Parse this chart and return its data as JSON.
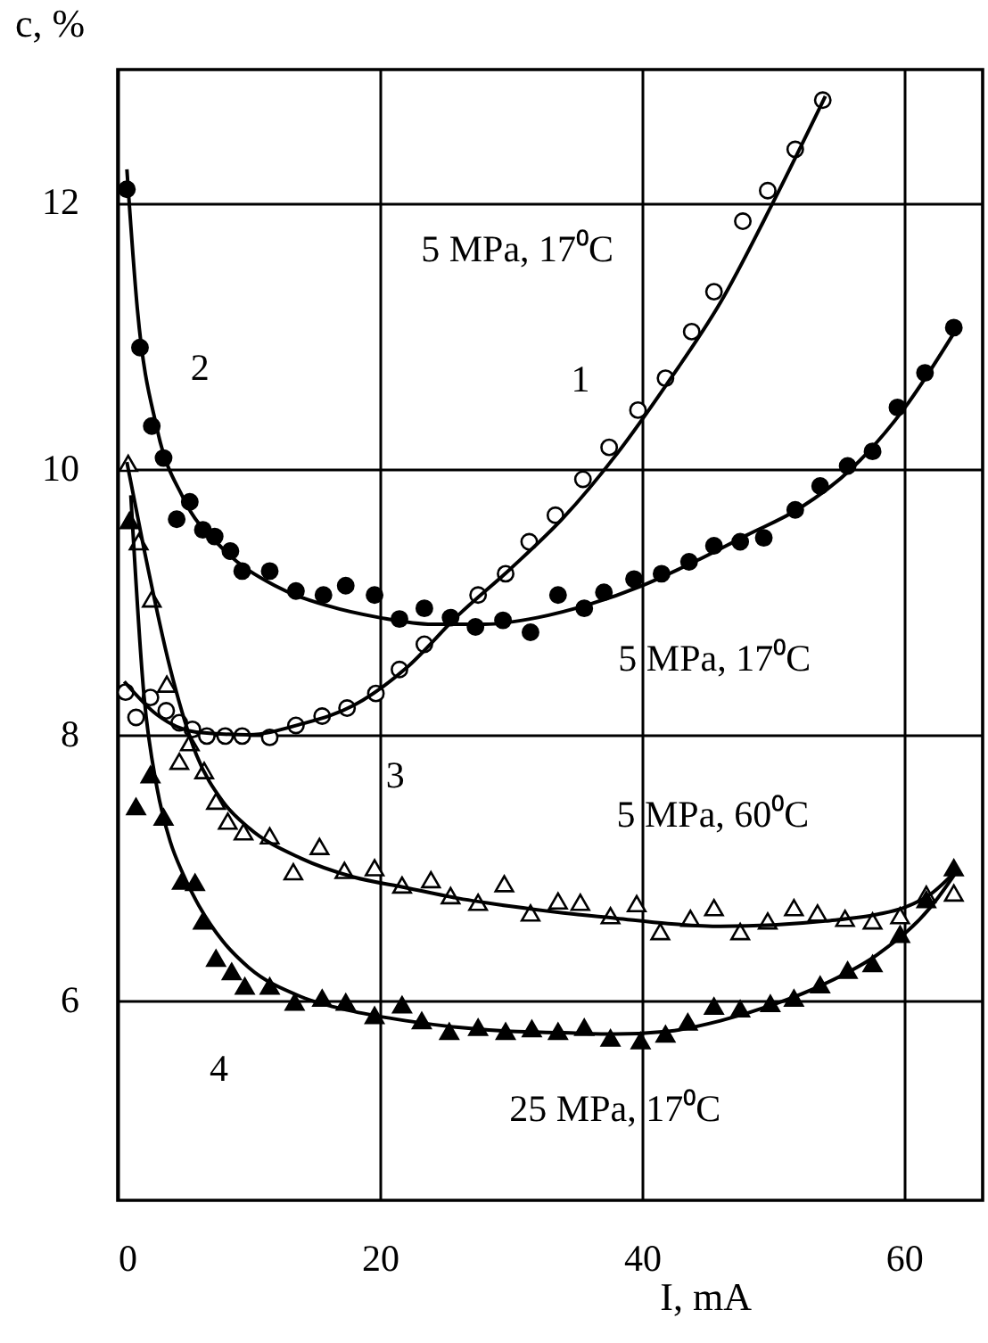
{
  "chart_data": {
    "type": "scatter",
    "xlabel": "I,  mA",
    "ylabel": "c, %",
    "xlim": [
      0,
      66
    ],
    "ylim": [
      4.5,
      13
    ],
    "xticks": [
      0,
      20,
      40,
      60
    ],
    "yticks": [
      6,
      8,
      10,
      12
    ],
    "grid": true,
    "series": [
      {
        "marker": "circle",
        "color": "#ffffff",
        "x": [
          0.6,
          1.4,
          2.5,
          3.7,
          4.7,
          5.7,
          6.8,
          8.2,
          9.5,
          11.6,
          13.6,
          15.6,
          17.5,
          19.7,
          21.5,
          23.4,
          27.5,
          29.6,
          31.4,
          33.4,
          35.5,
          37.5,
          39.7,
          41.8,
          43.8,
          45.5,
          47.7,
          49.6,
          51.7,
          53.8
        ],
        "values": [
          8.32,
          8.13,
          8.28,
          8.18,
          8.09,
          8.04,
          7.99,
          7.99,
          7.99,
          7.98,
          8.07,
          8.14,
          8.2,
          8.31,
          8.49,
          8.68,
          9.05,
          9.21,
          9.45,
          9.65,
          9.92,
          10.16,
          10.44,
          10.68,
          11.03,
          11.33,
          11.86,
          12.09,
          12.4,
          12.77
        ]
      },
      {
        "marker": "circle",
        "color": "#000000",
        "x": [
          0.7,
          1.7,
          2.6,
          3.5,
          4.5,
          5.5,
          6.5,
          7.4,
          8.6,
          9.5,
          11.6,
          13.6,
          15.7,
          17.4,
          19.6,
          21.5,
          23.4,
          25.4,
          27.3,
          29.4,
          31.5,
          33.6,
          35.6,
          37.1,
          39.4,
          41.5,
          43.6,
          45.5,
          47.5,
          49.3,
          51.7,
          53.6,
          55.7,
          57.6,
          59.5,
          61.6,
          63.8
        ],
        "values": [
          12.1,
          10.91,
          10.32,
          10.08,
          9.62,
          9.75,
          9.54,
          9.49,
          9.38,
          9.23,
          9.23,
          9.08,
          9.05,
          9.12,
          9.05,
          8.87,
          8.95,
          8.88,
          8.81,
          8.86,
          8.77,
          9.05,
          8.95,
          9.07,
          9.17,
          9.21,
          9.3,
          9.42,
          9.45,
          9.48,
          9.69,
          9.87,
          10.02,
          10.13,
          10.46,
          10.72,
          11.06
        ]
      },
      {
        "marker": "triangle",
        "color": "#ffffff",
        "x": [
          0.8,
          1.6,
          2.6,
          3.75,
          4.7,
          5.5,
          6.6,
          7.5,
          8.4,
          9.6,
          11.6,
          13.4,
          15.4,
          17.3,
          19.6,
          21.7,
          23.9,
          25.4,
          27.5,
          29.5,
          31.5,
          33.6,
          35.3,
          37.6,
          39.6,
          41.4,
          43.7,
          45.5,
          47.5,
          49.6,
          51.6,
          53.4,
          55.5,
          57.6,
          59.7,
          61.7,
          63.8
        ],
        "values": [
          10.04,
          9.45,
          9.02,
          8.38,
          7.8,
          7.94,
          7.73,
          7.5,
          7.35,
          7.27,
          7.24,
          6.97,
          7.16,
          6.98,
          7.0,
          6.87,
          6.91,
          6.79,
          6.74,
          6.88,
          6.66,
          6.75,
          6.74,
          6.64,
          6.73,
          6.52,
          6.62,
          6.7,
          6.52,
          6.6,
          6.7,
          6.66,
          6.62,
          6.6,
          6.64,
          6.8,
          6.81
        ]
      },
      {
        "marker": "triangle",
        "color": "#000000",
        "x": [
          0.9,
          1.4,
          2.5,
          3.5,
          4.9,
          5.9,
          6.5,
          7.5,
          8.7,
          9.7,
          11.6,
          13.5,
          15.6,
          17.4,
          19.6,
          21.7,
          23.2,
          25.3,
          27.5,
          29.6,
          31.6,
          33.6,
          35.6,
          37.6,
          39.9,
          41.8,
          43.5,
          45.5,
          47.5,
          49.8,
          51.6,
          53.6,
          55.7,
          57.6,
          59.7,
          61.7,
          63.8
        ],
        "values": [
          9.61,
          7.46,
          7.7,
          7.38,
          6.9,
          6.89,
          6.6,
          6.32,
          6.22,
          6.11,
          6.11,
          5.99,
          6.02,
          5.99,
          5.89,
          5.97,
          5.85,
          5.77,
          5.8,
          5.77,
          5.79,
          5.77,
          5.8,
          5.72,
          5.7,
          5.75,
          5.84,
          5.96,
          5.94,
          5.98,
          6.02,
          6.12,
          6.23,
          6.28,
          6.5,
          6.76,
          7.0
        ]
      },
      {
        "type": "line",
        "color": "#000000",
        "x": [
          0.5,
          3,
          6,
          10,
          14,
          18,
          22,
          26,
          30,
          34,
          38,
          42,
          46,
          50,
          54
        ],
        "values": [
          8.4,
          8.15,
          8.02,
          8.0,
          8.08,
          8.22,
          8.5,
          8.9,
          9.25,
          9.63,
          10.1,
          10.65,
          11.25,
          12.0,
          12.8
        ]
      },
      {
        "type": "line",
        "color": "#000000",
        "x": [
          0.7,
          1.5,
          3,
          5,
          8,
          12,
          16,
          20,
          24,
          28,
          32,
          36,
          40,
          44,
          48,
          52,
          56,
          60,
          64
        ],
        "values": [
          12.25,
          11.2,
          10.3,
          9.78,
          9.4,
          9.12,
          8.97,
          8.88,
          8.83,
          8.83,
          8.88,
          8.98,
          9.12,
          9.3,
          9.5,
          9.7,
          10.0,
          10.45,
          11.05
        ]
      },
      {
        "type": "line",
        "color": "#000000",
        "x": [
          0.7,
          2,
          4,
          6,
          8,
          10,
          14,
          18,
          22,
          26,
          30,
          34,
          38,
          42,
          46,
          50,
          54,
          58,
          60,
          62,
          64
        ],
        "values": [
          10.05,
          9.4,
          8.5,
          7.85,
          7.5,
          7.3,
          7.07,
          6.93,
          6.85,
          6.77,
          6.71,
          6.66,
          6.62,
          6.58,
          6.56,
          6.57,
          6.6,
          6.65,
          6.7,
          6.8,
          6.98
        ]
      },
      {
        "type": "line",
        "color": "#000000",
        "x": [
          1,
          2,
          3,
          4,
          5,
          6,
          8,
          10,
          14,
          18,
          22,
          26,
          30,
          34,
          38,
          42,
          46,
          50,
          54,
          58,
          62,
          64
        ],
        "values": [
          9.8,
          8.3,
          7.6,
          7.2,
          6.95,
          6.75,
          6.45,
          6.25,
          6.03,
          5.92,
          5.85,
          5.8,
          5.77,
          5.76,
          5.75,
          5.77,
          5.85,
          5.97,
          6.13,
          6.35,
          6.7,
          6.97
        ]
      }
    ],
    "annotations": [
      "1",
      "2",
      "3",
      "4",
      "5 MPa, 17⁰C",
      "5 MPa, 17⁰C",
      "5 MPa, 60⁰C",
      "25 MPa, 17⁰C"
    ]
  }
}
